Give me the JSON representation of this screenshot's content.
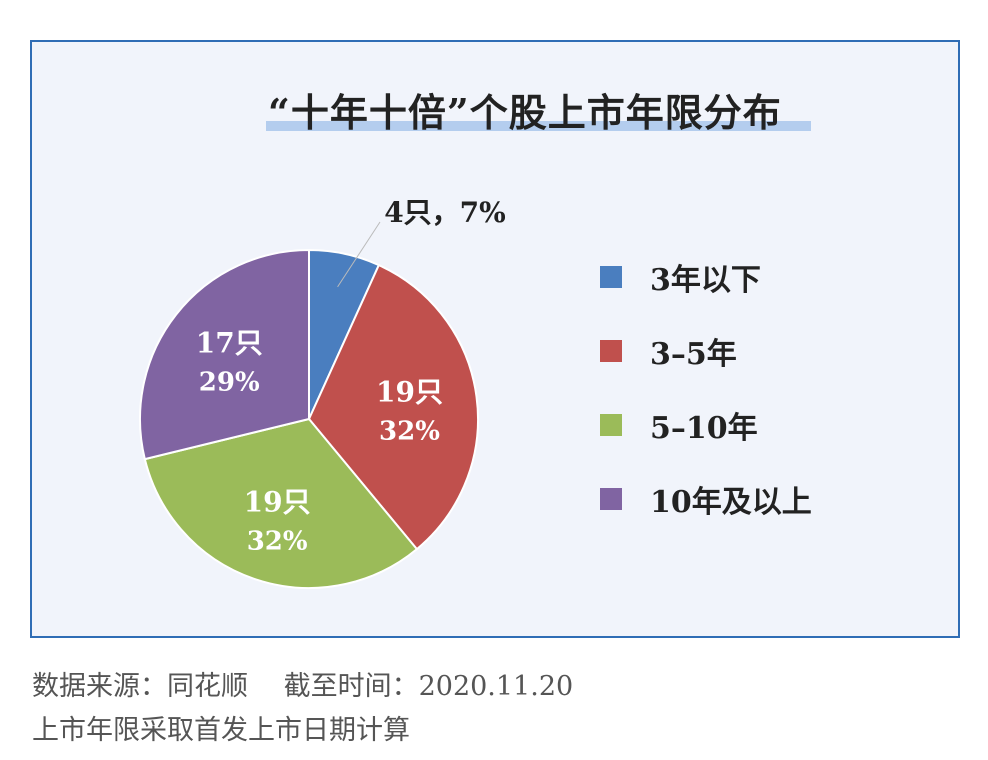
{
  "chart_data": {
    "type": "pie",
    "title": "“十年十倍”个股上市年限分布",
    "slices": [
      {
        "name": "3年以下",
        "value": 4,
        "percent": 7,
        "label": "4只，7%",
        "color": "#4a7ebf"
      },
      {
        "name": "3–5年",
        "value": 19,
        "percent": 32,
        "label_count": "19只",
        "label_pct": "32%",
        "color": "#c0504d"
      },
      {
        "name": "5–10年",
        "value": 19,
        "percent": 32,
        "label_count": "19只",
        "label_pct": "32%",
        "color": "#9bbb59"
      },
      {
        "name": "10年及以上",
        "value": 17,
        "percent": 29,
        "label_count": "17只",
        "label_pct": "29%",
        "color": "#8064a2"
      }
    ],
    "start_angle": "12 o'clock",
    "direction": "clockwise",
    "legend_position": "right"
  },
  "footer": {
    "source": "数据来源：同花顺　 截至时间：2020.11.20",
    "note": "上市年限采取首发上市日期计算"
  },
  "colors": {
    "frame_border": "#2f6db5",
    "title_underline": "#b4cdee"
  }
}
